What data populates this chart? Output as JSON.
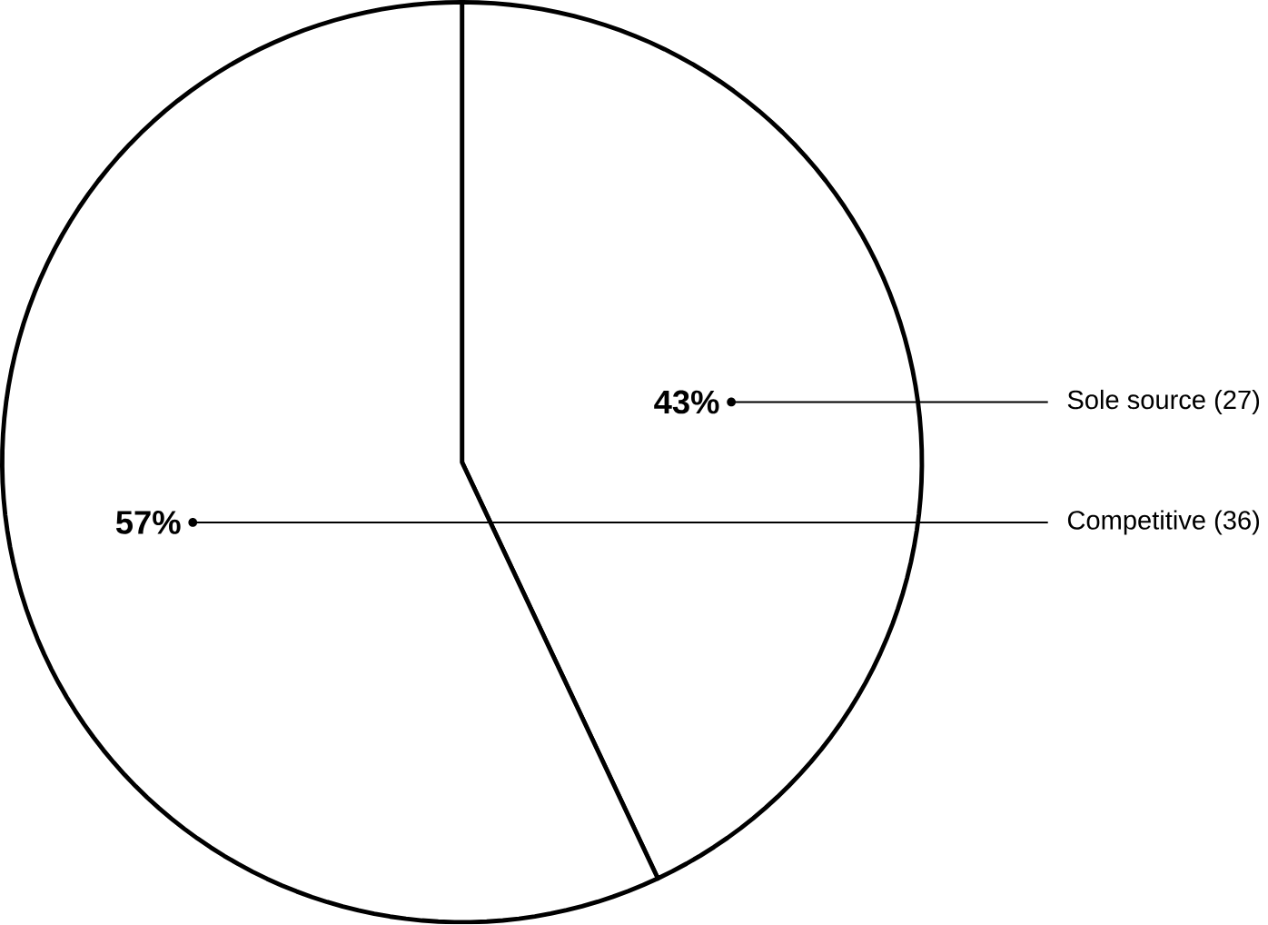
{
  "chart_data": {
    "type": "pie",
    "categories": [
      "Sole source (27)",
      "Competitive (36)"
    ],
    "values": [
      43,
      57
    ],
    "value_labels": [
      "43%",
      "57%"
    ],
    "colors": [
      "#ffffff",
      "#ffffff"
    ]
  }
}
